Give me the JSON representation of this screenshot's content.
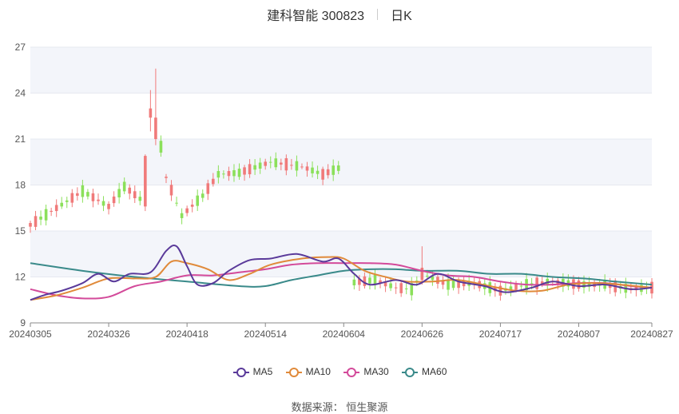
{
  "header": {
    "stock": "建科智能 300823",
    "period": "日K"
  },
  "source": {
    "label": "数据来源：",
    "value": "恒生聚源"
  },
  "colors": {
    "up": "#f07a7a",
    "down": "#8be05a",
    "MA5": "#5a3a9a",
    "MA10": "#e08a3a",
    "MA30": "#d34a9a",
    "MA60": "#3a8a8a",
    "grid": "#e6e9f0",
    "band": "#f3f5fa"
  },
  "chart_data": {
    "type": "candlestick",
    "ylim": [
      9,
      27
    ],
    "yticks": [
      9,
      12,
      15,
      18,
      21,
      24,
      27
    ],
    "xtick_labels": [
      "20240305",
      "20240326",
      "20240418",
      "20240514",
      "20240604",
      "20240626",
      "20240717",
      "20240807",
      "20240827"
    ],
    "trading_days": 120,
    "xtick_index": [
      0,
      15,
      30,
      45,
      60,
      75,
      90,
      105,
      119
    ],
    "gap": [
      60,
      61
    ],
    "legend": [
      "MA5",
      "MA10",
      "MA30",
      "MA60"
    ],
    "ohlc_anchors": [
      [
        0,
        15.4
      ],
      [
        5,
        16.5
      ],
      [
        10,
        17.6
      ],
      [
        15,
        16.6
      ],
      [
        18,
        17.9
      ],
      [
        21,
        17.1
      ],
      [
        24,
        22.5
      ],
      [
        26,
        18.5
      ],
      [
        29,
        16.0
      ],
      [
        33,
        17.3
      ],
      [
        36,
        18.7
      ],
      [
        40,
        18.8
      ],
      [
        46,
        19.5
      ],
      [
        52,
        19.2
      ],
      [
        56,
        18.7
      ],
      [
        59,
        19.1
      ],
      [
        61,
        11.6
      ],
      [
        66,
        11.8
      ],
      [
        70,
        11.3
      ],
      [
        73,
        11.2
      ],
      [
        75,
        12.2
      ],
      [
        80,
        11.5
      ],
      [
        85,
        11.6
      ],
      [
        90,
        11.1
      ],
      [
        95,
        11.5
      ],
      [
        100,
        11.7
      ],
      [
        105,
        11.5
      ],
      [
        110,
        11.5
      ],
      [
        115,
        11.2
      ],
      [
        119,
        11.3
      ]
    ],
    "series": [
      {
        "name": "MA5",
        "points": [
          [
            0,
            10.5
          ],
          [
            3,
            10.85
          ],
          [
            6,
            11.1
          ],
          [
            10,
            11.6
          ],
          [
            13,
            12.2
          ],
          [
            16,
            11.7
          ],
          [
            19,
            12.2
          ],
          [
            23,
            12.3
          ],
          [
            26,
            13.7
          ],
          [
            28,
            14.0
          ],
          [
            30,
            12.7
          ],
          [
            32,
            11.5
          ],
          [
            35,
            11.6
          ],
          [
            38,
            12.4
          ],
          [
            42,
            13.1
          ],
          [
            46,
            13.2
          ],
          [
            51,
            13.5
          ],
          [
            56,
            13.0
          ],
          [
            59,
            13.2
          ],
          [
            62,
            12.2
          ],
          [
            65,
            11.5
          ],
          [
            70,
            11.8
          ],
          [
            74,
            11.5
          ],
          [
            78,
            12.2
          ],
          [
            82,
            11.7
          ],
          [
            87,
            11.4
          ],
          [
            91,
            11.0
          ],
          [
            96,
            11.3
          ],
          [
            100,
            11.7
          ],
          [
            105,
            11.4
          ],
          [
            110,
            11.5
          ],
          [
            115,
            11.2
          ],
          [
            119,
            11.3
          ]
        ]
      },
      {
        "name": "MA10",
        "points": [
          [
            0,
            10.5
          ],
          [
            5,
            10.8
          ],
          [
            10,
            11.3
          ],
          [
            15,
            11.9
          ],
          [
            20,
            11.9
          ],
          [
            24,
            12.0
          ],
          [
            27,
            13.0
          ],
          [
            30,
            12.9
          ],
          [
            34,
            12.5
          ],
          [
            38,
            11.8
          ],
          [
            42,
            12.2
          ],
          [
            46,
            12.8
          ],
          [
            52,
            13.2
          ],
          [
            57,
            13.3
          ],
          [
            60,
            13.2
          ],
          [
            64,
            12.4
          ],
          [
            68,
            12.0
          ],
          [
            72,
            11.7
          ],
          [
            77,
            11.7
          ],
          [
            82,
            11.8
          ],
          [
            88,
            11.4
          ],
          [
            93,
            11.1
          ],
          [
            98,
            11.1
          ],
          [
            103,
            11.5
          ],
          [
            108,
            11.6
          ],
          [
            113,
            11.5
          ],
          [
            119,
            11.3
          ]
        ]
      },
      {
        "name": "MA30",
        "points": [
          [
            0,
            11.2
          ],
          [
            5,
            10.8
          ],
          [
            10,
            10.6
          ],
          [
            15,
            10.7
          ],
          [
            20,
            11.4
          ],
          [
            25,
            11.7
          ],
          [
            30,
            12.1
          ],
          [
            35,
            12.1
          ],
          [
            40,
            12.3
          ],
          [
            45,
            12.5
          ],
          [
            50,
            12.8
          ],
          [
            55,
            12.9
          ],
          [
            60,
            12.9
          ],
          [
            65,
            12.9
          ],
          [
            70,
            12.8
          ],
          [
            75,
            12.4
          ],
          [
            80,
            12.1
          ],
          [
            85,
            12.0
          ],
          [
            90,
            11.7
          ],
          [
            95,
            11.5
          ],
          [
            100,
            11.5
          ],
          [
            105,
            11.6
          ],
          [
            110,
            11.6
          ],
          [
            115,
            11.4
          ],
          [
            119,
            11.3
          ]
        ]
      },
      {
        "name": "MA60",
        "points": [
          [
            0,
            12.9
          ],
          [
            10,
            12.4
          ],
          [
            20,
            12.0
          ],
          [
            30,
            11.7
          ],
          [
            40,
            11.4
          ],
          [
            45,
            11.4
          ],
          [
            50,
            11.8
          ],
          [
            55,
            12.1
          ],
          [
            60,
            12.4
          ],
          [
            65,
            12.5
          ],
          [
            70,
            12.5
          ],
          [
            75,
            12.4
          ],
          [
            82,
            12.4
          ],
          [
            88,
            12.2
          ],
          [
            94,
            12.2
          ],
          [
            100,
            12.0
          ],
          [
            106,
            11.9
          ],
          [
            112,
            11.7
          ],
          [
            119,
            11.5
          ]
        ]
      }
    ]
  }
}
